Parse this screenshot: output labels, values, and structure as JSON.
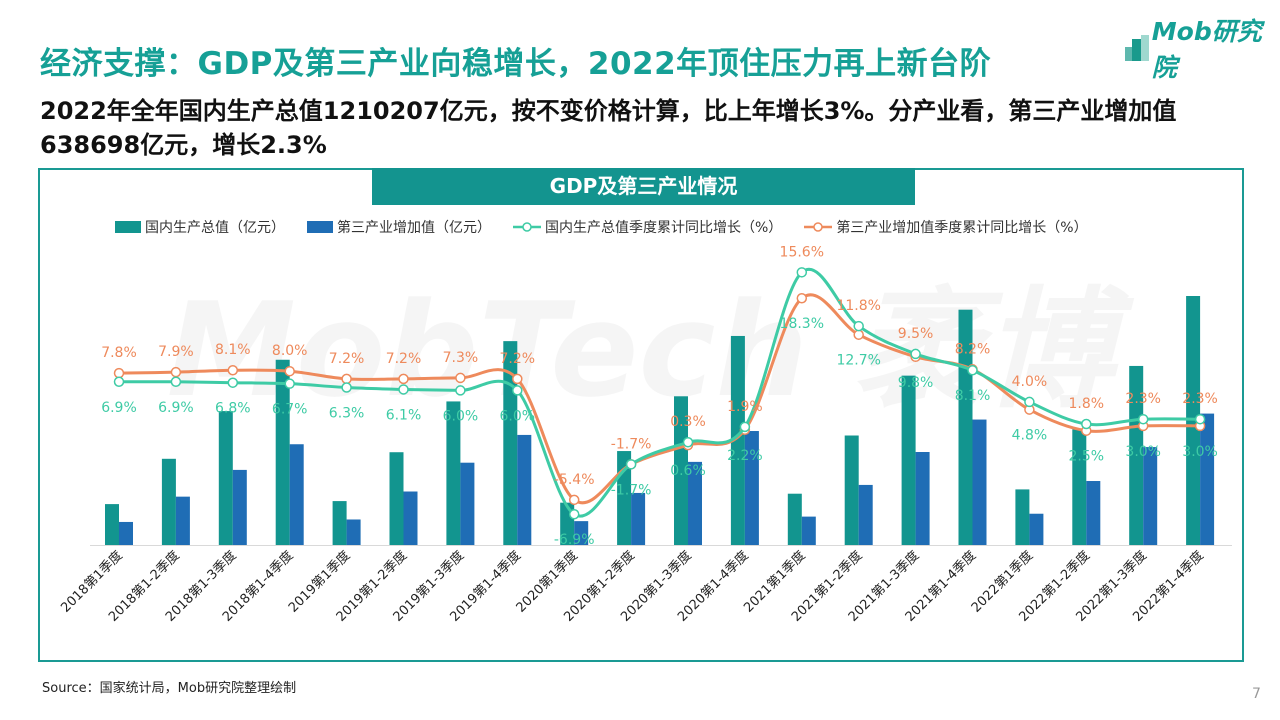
{
  "header": {
    "title": "经济支撑：GDP及第三产业向稳增长，2022年顶住压力再上新台阶",
    "subtitle": "2022年全年国内生产总值1210207亿元，按不变价格计算，比上年增长3%。分产业看，第三产业增加值638698亿元，增长2.3%",
    "logo": "Mob研究院"
  },
  "footer": {
    "source": "Source：国家统计局，Mob研究院整理绘制",
    "page_number": "7"
  },
  "watermark": "MobTech 袤博",
  "colors": {
    "accent": "#16a096",
    "gdp_bar": "#12958f",
    "tertiary_bar": "#1f6db5",
    "gdp_growth_line": "#3ecba5",
    "tertiary_growth_line": "#ee8a5c"
  },
  "chart_data": {
    "type": "bar+line",
    "title": "GDP及第三产业情况",
    "categories": [
      "2018第1季度",
      "2018第1-2季度",
      "2018第1-3季度",
      "2018第1-4季度",
      "2019第1季度",
      "2019第1-2季度",
      "2019第1-3季度",
      "2019第1-4季度",
      "2020第1季度",
      "2020第1-2季度",
      "2020第1-3季度",
      "2020第1-4季度",
      "2021第1季度",
      "2021第1-2季度",
      "2021第1-3季度",
      "2021第1-4季度",
      "2022第1季度",
      "2022第1-2季度",
      "2022第1-3季度",
      "2022第1-4季度"
    ],
    "legend_position": "top",
    "grid": false,
    "series": [
      {
        "name": "国内生产总值（亿元）",
        "type": "bar",
        "axis": "left",
        "values": [
          198783,
          418961,
          650899,
          900309,
          213433,
          450933,
          697798,
          990865,
          205727,
          456614,
          722786,
          1015986,
          249310,
          532167,
          823131,
          1143670,
          270178,
          562642,
          870269,
          1210207
        ]
      },
      {
        "name": "第三产业增加值（亿元）",
        "type": "bar",
        "axis": "left",
        "values": [
          112000,
          235000,
          365000,
          489700,
          124000,
          260000,
          400000,
          535000,
          116000,
          253000,
          404000,
          553977,
          138000,
          292000,
          452000,
          609680,
          152000,
          311000,
          476000,
          638698
        ]
      },
      {
        "name": "国内生产总值季度累计同比增长（%）",
        "type": "line",
        "axis": "right",
        "values": [
          6.9,
          6.9,
          6.8,
          6.7,
          6.3,
          6.1,
          6.0,
          6.0,
          -6.9,
          -1.7,
          0.6,
          2.2,
          18.3,
          12.7,
          9.8,
          8.1,
          4.8,
          2.5,
          3.0,
          3.0
        ],
        "labels": [
          "6.9%",
          "6.9%",
          "6.8%",
          "6.7%",
          "6.3%",
          "6.1%",
          "6.0%",
          "6.0%",
          "-6.9%",
          "-1.7%",
          "0.6%",
          "2.2%",
          "18.3%",
          "12.7%",
          "9.8%",
          "8.1%",
          "4.8%",
          "2.5%",
          "3.0%",
          "3.0%"
        ]
      },
      {
        "name": "第三产业增加值季度累计同比增长（%）",
        "type": "line",
        "axis": "right",
        "values": [
          7.8,
          7.9,
          8.1,
          8.0,
          7.2,
          7.2,
          7.3,
          7.2,
          -5.4,
          -1.7,
          0.3,
          1.9,
          15.6,
          11.8,
          9.5,
          8.2,
          4.0,
          1.8,
          2.3,
          2.3
        ],
        "labels": [
          "7.8%",
          "7.9%",
          "8.1%",
          "8.0%",
          "7.2%",
          "7.2%",
          "7.3%",
          "7.2%",
          "-5.4%",
          "-1.7%",
          "0.3%",
          "1.9%",
          "15.6%",
          "11.8%",
          "9.5%",
          "8.2%",
          "4.0%",
          "1.8%",
          "2.3%",
          "2.3%"
        ]
      }
    ]
  }
}
